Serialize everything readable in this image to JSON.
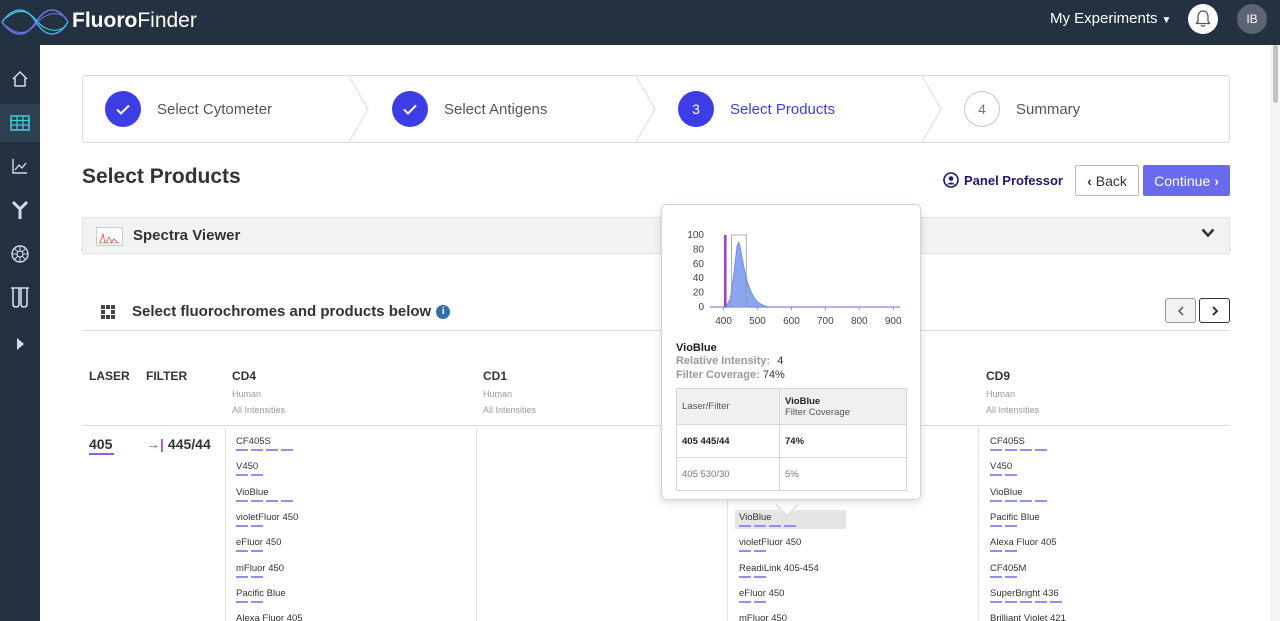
{
  "app": {
    "logo_bold": "Fluoro",
    "logo_light": "Finder"
  },
  "header": {
    "experiments_label": "My Experiments",
    "avatar_initials": "IB"
  },
  "colors": {
    "accent": "#3d3de6",
    "topbar": "#233140",
    "bar_fill": "#8f8ff2",
    "laser_underline": "#8b5cf6"
  },
  "sidebar": {
    "items": [
      "home-icon",
      "grid-icon",
      "chart-icon",
      "antibody-icon",
      "cytometer-icon",
      "tubes-icon",
      "expand-icon"
    ]
  },
  "stepper": {
    "steps": [
      {
        "label": "Select Cytometer",
        "number": "1",
        "state": "done"
      },
      {
        "label": "Select Antigens",
        "number": "2",
        "state": "done"
      },
      {
        "label": "Select Products",
        "number": "3",
        "state": "current"
      },
      {
        "label": "Summary",
        "number": "4",
        "state": "todo"
      }
    ]
  },
  "page": {
    "title": "Select Products",
    "panel_professor": "Panel Professor",
    "back_label": "Back",
    "continue_label": "Continue"
  },
  "spectra": {
    "title": "Spectra Viewer"
  },
  "selection": {
    "title": "Select fluorochromes and products below",
    "info_icon": "i"
  },
  "table": {
    "col_laser": "LASER",
    "col_filter": "FILTER",
    "antigens": [
      {
        "name": "CD4",
        "species": "Human",
        "intensity": "All Intensities"
      },
      {
        "name": "CD1",
        "species": "Human",
        "intensity": "All Intensities"
      },
      {
        "name": "CD9",
        "species": "Human",
        "intensity": "All Intensities"
      }
    ],
    "laser": "405",
    "filter": "445/44",
    "cd4_products": [
      {
        "name": "CF405S",
        "level": 4
      },
      {
        "name": "V450",
        "level": 2
      },
      {
        "name": "VioBlue",
        "level": 4
      },
      {
        "name": "violetFluor 450",
        "level": 2
      },
      {
        "name": "eFluor 450",
        "level": 2
      },
      {
        "name": "mFluor 450",
        "level": 2
      },
      {
        "name": "Pacific Blue",
        "level": 2
      },
      {
        "name": "Alexa Fluor 405",
        "level": 0
      }
    ],
    "cd1_products": [
      {
        "name": "VioBlue",
        "level": 4,
        "highlighted": true
      },
      {
        "name": "violetFluor 450",
        "level": 2
      },
      {
        "name": "ReadiLink 405-454",
        "level": 2
      },
      {
        "name": "eFluor 450",
        "level": 2
      },
      {
        "name": "mFluor 450",
        "level": 0
      }
    ],
    "cd9_products": [
      {
        "name": "CF405S",
        "level": 4
      },
      {
        "name": "V450",
        "level": 2
      },
      {
        "name": "VioBlue",
        "level": 4
      },
      {
        "name": "Pacific Blue",
        "level": 2
      },
      {
        "name": "Alexa Fluor 405",
        "level": 2
      },
      {
        "name": "CF405M",
        "level": 2
      },
      {
        "name": "SuperBright 436",
        "level": 5
      },
      {
        "name": "Brilliant Violet 421",
        "level": 0
      }
    ]
  },
  "popover": {
    "name": "VioBlue",
    "rel_intensity_label": "Relative Intensity:",
    "rel_intensity_value": "4",
    "filter_coverage_label": "Filter Coverage:",
    "filter_coverage_value": "74%",
    "table_header_1": "Laser/Filter",
    "table_header_2_title": "VioBlue",
    "table_header_2_sub": "Filter Coverage",
    "rows": [
      {
        "filter": "405 445/44",
        "coverage": "74%",
        "bold": true
      },
      {
        "filter": "405 530/30",
        "coverage": "5%",
        "bold": false
      }
    ],
    "chart_data": {
      "type": "area",
      "title": "",
      "xlabel": "",
      "ylabel": "",
      "x_ticks": [
        "400",
        "500",
        "600",
        "700",
        "800",
        "900"
      ],
      "y_ticks": [
        "0",
        "20",
        "40",
        "60",
        "80",
        "100"
      ],
      "xlim": [
        360,
        920
      ],
      "ylim": [
        0,
        100
      ],
      "laser_line_nm": 405,
      "filter_window_nm": [
        423,
        467
      ],
      "series": [
        {
          "x": [
            400,
            410,
            420,
            430,
            440,
            445,
            450,
            460,
            470,
            480,
            490,
            500,
            510,
            520,
            530
          ],
          "y": [
            0,
            3,
            12,
            45,
            85,
            90,
            80,
            55,
            35,
            22,
            13,
            7,
            4,
            2,
            0
          ]
        }
      ]
    }
  }
}
